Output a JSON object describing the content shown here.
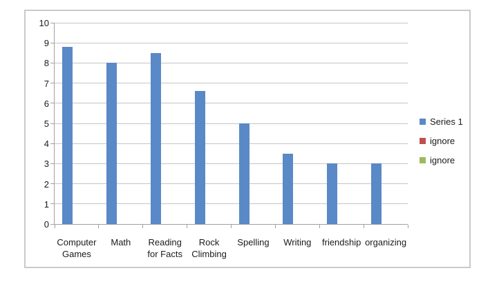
{
  "chart_data": {
    "type": "bar",
    "title": "",
    "xlabel": "",
    "ylabel": "",
    "categories": [
      "Computer Games",
      "Math",
      "Reading for Facts",
      "Rock Climbing",
      "Spelling",
      "Writing",
      "friendship",
      "organizing"
    ],
    "category_display_lines": [
      "Computer\nGames",
      "Math",
      "Reading\nfor Facts",
      "Rock\nClimbing",
      "Spelling",
      "Writing",
      "friendship",
      "organizing"
    ],
    "series": [
      {
        "name": "Series 1",
        "values": [
          8.8,
          8,
          8.5,
          6.6,
          5,
          3.5,
          3,
          3
        ],
        "color": "#5989c7"
      }
    ],
    "ylim": [
      0,
      10
    ],
    "y_ticks": [
      0,
      1,
      2,
      3,
      4,
      5,
      6,
      7,
      8,
      9,
      10
    ],
    "grid": true,
    "legend_position": "right",
    "legend": [
      {
        "label": "Series 1",
        "color": "#5989c7"
      },
      {
        "label": "ignore",
        "color": "#c0504d"
      },
      {
        "label": "ignore",
        "color": "#9bbb59"
      }
    ]
  },
  "colors": {
    "bar": "#5989c7",
    "gridline": "#c4c4c4",
    "axis": "#a0a0a0",
    "frame_border": "#c9c9c9",
    "text": "#1a1a1a",
    "background": "#ffffff"
  }
}
